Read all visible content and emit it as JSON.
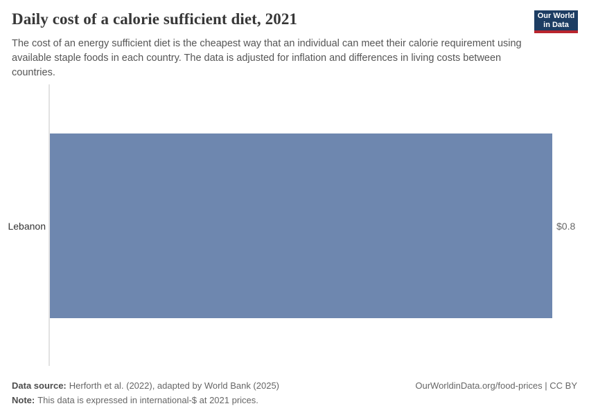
{
  "logo": {
    "line1": "Our World",
    "line2": "in Data"
  },
  "header": {
    "title": "Daily cost of a calorie sufficient diet, 2021",
    "subtitle": "The cost of an energy sufficient diet is the cheapest way that an individual can meet their calorie requirement using available staple foods in each country. The data is adjusted for inflation and differences in living costs between countries."
  },
  "chart_data": {
    "type": "bar",
    "orientation": "horizontal",
    "title": "Daily cost of a calorie sufficient diet, 2021",
    "categories": [
      "Lebanon"
    ],
    "values": [
      0.8
    ],
    "value_labels": [
      "$0.8"
    ],
    "unit": "international-$ per day",
    "xlim": [
      0,
      0.8
    ],
    "grid": false,
    "legend": "none",
    "bar_color": "#6e87af",
    "axis_line_color": "#e2e2e2"
  },
  "footer": {
    "data_source_label": "Data source:",
    "data_source": "Herforth et al. (2022), adapted by World Bank (2025)",
    "note_label": "Note:",
    "note": "This data is expressed in international-$ at 2021 prices.",
    "attribution": "OurWorldinData.org/food-prices | CC BY"
  },
  "colors": {
    "logo_background": "#1d3d63",
    "logo_accent": "#b9252e",
    "title_text": "#373737",
    "subtitle_text": "#555555",
    "bar": "#6e87af"
  }
}
